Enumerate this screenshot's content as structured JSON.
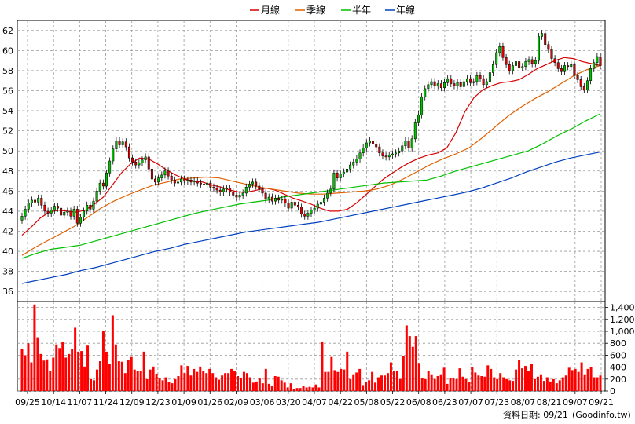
{
  "legend": [
    {
      "name": "月線",
      "color": "#d80000"
    },
    {
      "name": "季線",
      "color": "#e06000"
    },
    {
      "name": "半年",
      "color": "#00c000"
    },
    {
      "name": "年線",
      "color": "#0040c0"
    }
  ],
  "footer": {
    "date_label": "資料日期: 09/21",
    "source": "(Goodinfo.tw)"
  },
  "chart_data": [
    {
      "type": "candlestick",
      "y_ticks": [
        36,
        38,
        40,
        42,
        44,
        46,
        48,
        50,
        52,
        54,
        56,
        58,
        60,
        62
      ],
      "ylim": [
        35,
        63
      ],
      "grid": true,
      "legend_position": "top-center",
      "up_color": "#00c000",
      "down_color": "#e00000",
      "x_ticks": [
        "09/25",
        "10/14",
        "11/07",
        "11/24",
        "12/09",
        "12/23",
        "01/09",
        "01/26",
        "02/09",
        "03/06",
        "03/20",
        "04/07",
        "04/22",
        "05/08",
        "05/22",
        "06/08",
        "06/23",
        "07/07",
        "07/23",
        "08/07",
        "08/21",
        "09/07",
        "09/21"
      ],
      "closes": [
        43.5,
        44.2,
        44.8,
        45.1,
        44.9,
        45.3,
        44.6,
        44.0,
        43.8,
        44.1,
        44.5,
        44.3,
        43.6,
        43.9,
        44.0,
        43.5,
        44.2,
        42.8,
        43.4,
        44.0,
        44.6,
        44.2,
        45.0,
        46.0,
        46.8,
        46.5,
        47.8,
        49.0,
        50.2,
        51.0,
        50.6,
        50.9,
        50.4,
        49.3,
        48.9,
        48.6,
        48.8,
        49.1,
        49.4,
        48.2,
        47.2,
        46.9,
        47.3,
        47.6,
        48.0,
        47.5,
        47.1,
        46.8,
        46.9,
        47.2,
        47.0,
        47.1,
        46.9,
        47.0,
        46.8,
        46.7,
        46.6,
        46.8,
        46.4,
        46.3,
        46.1,
        45.9,
        46.2,
        46.3,
        45.9,
        45.6,
        45.4,
        45.6,
        45.8,
        46.4,
        46.7,
        46.9,
        46.5,
        46.2,
        45.8,
        45.2,
        45.4,
        45.0,
        45.3,
        45.1,
        45.2,
        44.8,
        44.3,
        44.9,
        44.6,
        44.4,
        43.7,
        43.5,
        43.8,
        44.1,
        44.3,
        44.7,
        44.9,
        45.3,
        45.8,
        46.2,
        47.8,
        47.3,
        47.7,
        47.9,
        48.2,
        48.6,
        48.9,
        49.2,
        49.8,
        50.3,
        50.8,
        51.0,
        50.7,
        50.4,
        49.8,
        49.5,
        49.4,
        49.6,
        49.7,
        49.8,
        50.0,
        50.5,
        51.0,
        50.3,
        51.2,
        52.8,
        53.6,
        55.4,
        56.2,
        56.6,
        56.9,
        56.5,
        56.7,
        56.3,
        56.8,
        57.2,
        56.7,
        56.5,
        56.8,
        56.4,
        56.9,
        57.2,
        56.8,
        56.9,
        57.5,
        57.2,
        56.6,
        56.9,
        57.8,
        58.6,
        59.8,
        60.4,
        59.3,
        58.6,
        58.0,
        58.5,
        58.9,
        58.3,
        58.4,
        58.9,
        59.1,
        58.7,
        59.0,
        61.4,
        61.7,
        60.6,
        60.1,
        59.2,
        58.8,
        58.2,
        57.9,
        58.5,
        58.4,
        58.6,
        57.5,
        57.1,
        56.4,
        56.1,
        57.0,
        58.2,
        58.8,
        59.4,
        58.5
      ],
      "volumes": [
        700,
        600,
        800,
        480,
        1450,
        900,
        620,
        510,
        530,
        330,
        560,
        780,
        720,
        820,
        560,
        620,
        700,
        1060,
        660,
        670,
        410,
        760,
        200,
        180,
        360,
        500,
        1010,
        660,
        450,
        1270,
        780,
        500,
        490,
        300,
        520,
        570,
        360,
        340,
        330,
        660,
        200,
        360,
        410,
        290,
        210,
        180,
        230,
        150,
        130,
        200,
        250,
        430,
        300,
        420,
        260,
        370,
        320,
        410,
        330,
        300,
        370,
        300,
        230,
        190,
        260,
        300,
        300,
        370,
        330,
        250,
        220,
        320,
        300,
        230,
        140,
        160,
        210,
        130,
        370,
        120,
        90,
        250,
        240,
        180,
        140,
        60,
        130,
        30,
        50,
        50,
        80,
        60,
        70,
        60,
        110,
        60,
        830,
        320,
        320,
        570,
        350,
        320,
        370,
        360,
        660,
        200,
        280,
        310,
        370,
        100,
        150,
        180,
        320,
        140,
        230,
        260,
        260,
        300,
        480,
        330,
        340,
        200,
        580,
        1100,
        920,
        740,
        920,
        470,
        220,
        200,
        330,
        280,
        200,
        250,
        280,
        390,
        120,
        210,
        210,
        200,
        380,
        240,
        200,
        150,
        400,
        310,
        260,
        250,
        240,
        430,
        370,
        230,
        200,
        300,
        230,
        200,
        180,
        170,
        360,
        520,
        380,
        420,
        330,
        460,
        200,
        240,
        280,
        170,
        230,
        160,
        200,
        130,
        180,
        230,
        260,
        390,
        350,
        370,
        320,
        480,
        280,
        370,
        400,
        230,
        230,
        260
      ],
      "vol_ticks": [
        0,
        200,
        400,
        600,
        800,
        1000,
        1200,
        1400
      ],
      "vol_ticks_text": [
        "0",
        "200",
        "400",
        "600",
        "800",
        "1,000",
        "1,200",
        "1,400"
      ],
      "vol_lim": [
        0,
        1500
      ],
      "ma_series": [
        {
          "name": "月線",
          "values": [
            41.6,
            42.4,
            43.3,
            43.9,
            44.1,
            44.0,
            43.9,
            44.1,
            44.7,
            45.4,
            46.6,
            47.8,
            48.7,
            49.3,
            49.2,
            48.7,
            48.1,
            47.6,
            47.2,
            47.0,
            46.9,
            46.6,
            46.4,
            46.1,
            45.9,
            45.9,
            46.1,
            46.3,
            46.1,
            45.7,
            45.3,
            45.0,
            44.7,
            44.3,
            44.0,
            44.0,
            44.2,
            44.8,
            45.6,
            46.4,
            47.2,
            47.8,
            48.4,
            48.9,
            49.3,
            49.6,
            49.8,
            50.3,
            51.8,
            53.9,
            55.3,
            56.1,
            56.5,
            56.8,
            56.9,
            57.1,
            57.6,
            58.2,
            58.6,
            59.0,
            59.3,
            59.2,
            58.9,
            58.7,
            58.5
          ]
        },
        {
          "name": "季線",
          "values": [
            39.6,
            40.4,
            41.1,
            41.8,
            42.5,
            43.4,
            44.3,
            45.0,
            45.6,
            46.1,
            46.6,
            46.9,
            47.2,
            47.3,
            47.4,
            47.3,
            47.0,
            46.7,
            46.4,
            46.2,
            46.0,
            45.8,
            45.7,
            45.7,
            45.8,
            45.9,
            46.0,
            46.2,
            46.6,
            47.2,
            47.9,
            48.6,
            49.2,
            49.7,
            50.3,
            51.3,
            52.4,
            53.5,
            54.4,
            55.2,
            55.9,
            56.7,
            57.5,
            58.1,
            58.5
          ]
        },
        {
          "name": "半年",
          "values": [
            39.3,
            39.8,
            40.2,
            40.4,
            40.6,
            41.0,
            41.4,
            41.8,
            42.2,
            42.6,
            43.0,
            43.4,
            43.8,
            44.1,
            44.4,
            44.7,
            44.9,
            45.1,
            45.4,
            45.6,
            45.8,
            46.0,
            46.2,
            46.4,
            46.6,
            46.8,
            46.9,
            47.0,
            47.1,
            47.5,
            48.0,
            48.4,
            48.8,
            49.2,
            49.6,
            50.0,
            50.7,
            51.5,
            52.2,
            53.0,
            53.7
          ]
        },
        {
          "name": "年線",
          "values": [
            36.8,
            37.1,
            37.4,
            37.7,
            38.1,
            38.4,
            38.8,
            39.2,
            39.6,
            40.0,
            40.3,
            40.7,
            41.0,
            41.3,
            41.6,
            41.9,
            42.1,
            42.3,
            42.5,
            42.7,
            42.9,
            43.2,
            43.5,
            43.8,
            44.1,
            44.4,
            44.7,
            45.0,
            45.3,
            45.6,
            45.9,
            46.3,
            46.8,
            47.3,
            47.9,
            48.4,
            48.9,
            49.3,
            49.6,
            49.9
          ]
        }
      ]
    }
  ]
}
